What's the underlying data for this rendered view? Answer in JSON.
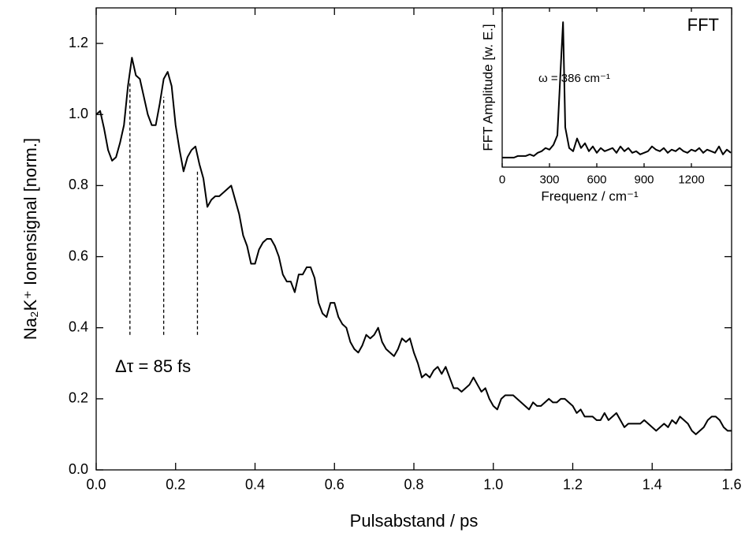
{
  "chart_data": [
    {
      "type": "line",
      "xlabel": "Pulsabstand / ps",
      "ylabel": "Na₂K⁺ Ionensignal [norm.]",
      "annotation": "Δτ = 85 fs",
      "xlim": [
        0,
        1.6
      ],
      "ylim": [
        0,
        1.3
      ],
      "xticks": [
        {
          "value": 0,
          "label": "0.0"
        },
        0.2,
        0.4,
        0.6,
        0.8,
        {
          "value": 1,
          "label": "1.0"
        },
        1.2,
        1.4,
        1.6
      ],
      "yticks": [
        {
          "value": 0,
          "label": "0.0"
        },
        0.2,
        0.4,
        0.6,
        0.8,
        {
          "value": 1,
          "label": "1.0"
        },
        1.2
      ],
      "vlines": [
        {
          "x": 0.085,
          "y": [
            0.38,
            1.09
          ]
        },
        {
          "x": 0.17,
          "y": [
            0.38,
            1.05
          ]
        },
        {
          "x": 0.255,
          "y": [
            0.38,
            0.84
          ]
        }
      ],
      "series": [
        {
          "color": "#000000",
          "x": [
            0,
            0.01,
            0.02,
            0.03,
            0.04,
            0.05,
            0.06,
            0.07,
            0.08,
            0.09,
            0.1,
            0.11,
            0.12,
            0.13,
            0.14,
            0.15,
            0.16,
            0.17,
            0.18,
            0.19,
            0.2,
            0.21,
            0.22,
            0.23,
            0.24,
            0.25,
            0.26,
            0.27,
            0.28,
            0.29,
            0.3,
            0.31,
            0.32,
            0.33,
            0.34,
            0.35,
            0.36,
            0.37,
            0.38,
            0.39,
            0.4,
            0.41,
            0.42,
            0.43,
            0.44,
            0.45,
            0.46,
            0.47,
            0.48,
            0.49,
            0.5,
            0.51,
            0.52,
            0.53,
            0.54,
            0.55,
            0.56,
            0.57,
            0.58,
            0.59,
            0.6,
            0.61,
            0.62,
            0.63,
            0.64,
            0.65,
            0.66,
            0.67,
            0.68,
            0.69,
            0.7,
            0.71,
            0.72,
            0.73,
            0.74,
            0.75,
            0.76,
            0.77,
            0.78,
            0.79,
            0.8,
            0.81,
            0.82,
            0.83,
            0.84,
            0.85,
            0.86,
            0.87,
            0.88,
            0.89,
            0.9,
            0.91,
            0.92,
            0.93,
            0.94,
            0.95,
            0.96,
            0.97,
            0.98,
            0.99,
            1,
            1.01,
            1.02,
            1.03,
            1.04,
            1.05,
            1.06,
            1.07,
            1.08,
            1.09,
            1.1,
            1.11,
            1.12,
            1.13,
            1.14,
            1.15,
            1.16,
            1.17,
            1.18,
            1.19,
            1.2,
            1.21,
            1.22,
            1.23,
            1.24,
            1.25,
            1.26,
            1.27,
            1.28,
            1.29,
            1.3,
            1.31,
            1.32,
            1.33,
            1.34,
            1.35,
            1.36,
            1.37,
            1.38,
            1.39,
            1.4,
            1.41,
            1.42,
            1.43,
            1.44,
            1.45,
            1.46,
            1.47,
            1.48,
            1.49,
            1.5,
            1.51,
            1.52,
            1.53,
            1.54,
            1.55,
            1.56,
            1.57,
            1.58,
            1.59,
            1.6
          ],
          "values": [
            1,
            1.01,
            0.96,
            0.9,
            0.87,
            0.88,
            0.92,
            0.97,
            1.08,
            1.16,
            1.11,
            1.1,
            1.05,
            1,
            0.97,
            0.97,
            1.03,
            1.1,
            1.12,
            1.08,
            0.97,
            0.9,
            0.84,
            0.88,
            0.9,
            0.91,
            0.86,
            0.82,
            0.74,
            0.76,
            0.77,
            0.77,
            0.78,
            0.79,
            0.8,
            0.76,
            0.72,
            0.66,
            0.63,
            0.58,
            0.58,
            0.62,
            0.64,
            0.65,
            0.65,
            0.63,
            0.6,
            0.55,
            0.53,
            0.53,
            0.5,
            0.55,
            0.55,
            0.57,
            0.57,
            0.54,
            0.47,
            0.44,
            0.43,
            0.47,
            0.47,
            0.43,
            0.41,
            0.4,
            0.36,
            0.34,
            0.33,
            0.35,
            0.38,
            0.37,
            0.38,
            0.4,
            0.36,
            0.34,
            0.33,
            0.32,
            0.34,
            0.37,
            0.36,
            0.37,
            0.33,
            0.3,
            0.26,
            0.27,
            0.26,
            0.28,
            0.29,
            0.27,
            0.29,
            0.26,
            0.23,
            0.23,
            0.22,
            0.23,
            0.24,
            0.26,
            0.24,
            0.22,
            0.23,
            0.2,
            0.18,
            0.17,
            0.2,
            0.21,
            0.21,
            0.21,
            0.2,
            0.19,
            0.18,
            0.17,
            0.19,
            0.18,
            0.18,
            0.19,
            0.2,
            0.19,
            0.19,
            0.2,
            0.2,
            0.19,
            0.18,
            0.16,
            0.17,
            0.15,
            0.15,
            0.15,
            0.14,
            0.14,
            0.16,
            0.14,
            0.15,
            0.16,
            0.14,
            0.12,
            0.13,
            0.13,
            0.13,
            0.13,
            0.14,
            0.13,
            0.12,
            0.11,
            0.12,
            0.13,
            0.12,
            0.14,
            0.13,
            0.15,
            0.14,
            0.13,
            0.11,
            0.1,
            0.11,
            0.12,
            0.14,
            0.15,
            0.15,
            0.14,
            0.12,
            0.11,
            0.11
          ]
        }
      ]
    },
    {
      "type": "line",
      "title": "FFT",
      "xlabel": "Frequenz / cm⁻¹",
      "ylabel": "FFT Amplitude [w. E.]",
      "annotation": "ω = 386 cm⁻¹",
      "xlim": [
        0,
        1455
      ],
      "ylim": [
        0,
        1
      ],
      "xticks": [
        0,
        300,
        600,
        900,
        1200
      ],
      "series": [
        {
          "color": "#000000",
          "x": [
            0,
            25,
            50,
            75,
            100,
            125,
            150,
            175,
            200,
            225,
            250,
            275,
            300,
            325,
            350,
            375,
            386,
            400,
            425,
            450,
            475,
            500,
            525,
            550,
            575,
            600,
            625,
            650,
            675,
            700,
            725,
            750,
            775,
            800,
            825,
            850,
            875,
            900,
            925,
            950,
            975,
            1000,
            1025,
            1050,
            1075,
            1100,
            1125,
            1150,
            1175,
            1200,
            1225,
            1250,
            1275,
            1300,
            1325,
            1350,
            1375,
            1400,
            1425,
            1450
          ],
          "values": [
            0.06,
            0.06,
            0.06,
            0.06,
            0.07,
            0.07,
            0.07,
            0.08,
            0.07,
            0.09,
            0.1,
            0.12,
            0.11,
            0.14,
            0.2,
            0.7,
            0.91,
            0.25,
            0.12,
            0.1,
            0.18,
            0.12,
            0.15,
            0.1,
            0.13,
            0.09,
            0.12,
            0.1,
            0.11,
            0.12,
            0.09,
            0.13,
            0.1,
            0.12,
            0.09,
            0.1,
            0.08,
            0.09,
            0.1,
            0.13,
            0.11,
            0.1,
            0.12,
            0.09,
            0.11,
            0.1,
            0.12,
            0.1,
            0.09,
            0.11,
            0.1,
            0.12,
            0.09,
            0.11,
            0.1,
            0.09,
            0.13,
            0.08,
            0.11,
            0.09
          ]
        }
      ]
    }
  ]
}
